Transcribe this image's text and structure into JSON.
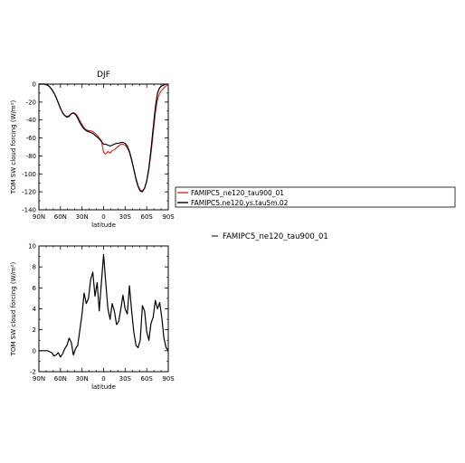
{
  "figure_title": "DJF",
  "chart_data": [
    {
      "type": "line",
      "title": "DJF",
      "xlabel": "latitude",
      "ylabel": "TOM SW cloud forcing (W/m²)",
      "xlim": [
        90,
        -90
      ],
      "ylim": [
        -140,
        0
      ],
      "xticklabels": [
        "90N",
        "60N",
        "30N",
        "0",
        "30S",
        "60S",
        "90S"
      ],
      "xticks": [
        90,
        60,
        30,
        0,
        -30,
        -60,
        -90
      ],
      "yticks": [
        0,
        -20,
        -40,
        -60,
        -80,
        -100,
        -120,
        -140
      ],
      "grid": false,
      "legend_position": "right",
      "series": [
        {
          "name": "FAMIPC5_ne120_tau900_01",
          "color": "#e8262a",
          "x": [
            90,
            87,
            84,
            81,
            78,
            75,
            72,
            69,
            66,
            63,
            60,
            57,
            54,
            51,
            48,
            45,
            42,
            39,
            36,
            33,
            30,
            27,
            24,
            21,
            18,
            15,
            12,
            9,
            6,
            3,
            0,
            -3,
            -6,
            -9,
            -12,
            -15,
            -18,
            -21,
            -24,
            -27,
            -30,
            -33,
            -36,
            -39,
            -42,
            -45,
            -48,
            -51,
            -54,
            -57,
            -60,
            -63,
            -66,
            -69,
            -72,
            -75,
            -78,
            -81,
            -84,
            -87,
            -90
          ],
          "y": [
            0,
            0,
            0,
            0,
            -1,
            -3,
            -6,
            -10,
            -15,
            -21,
            -27,
            -32,
            -35,
            -36,
            -35,
            -33,
            -32,
            -33,
            -36,
            -41,
            -45,
            -49,
            -51,
            -52,
            -52,
            -53,
            -55,
            -57,
            -60,
            -63,
            -76,
            -78,
            -75,
            -77,
            -74,
            -73,
            -71,
            -69,
            -67,
            -67,
            -68,
            -71,
            -76,
            -85,
            -95,
            -105,
            -113,
            -118,
            -119,
            -116,
            -108,
            -95,
            -77,
            -55,
            -32,
            -17,
            -10,
            -7,
            -4,
            -2,
            -1
          ]
        },
        {
          "name": "FAMIPC5.ne120.ys.tau5m.02",
          "color": "#000000",
          "x": [
            90,
            87,
            84,
            81,
            78,
            75,
            72,
            69,
            66,
            63,
            60,
            57,
            54,
            51,
            48,
            45,
            42,
            39,
            36,
            33,
            30,
            27,
            24,
            21,
            18,
            15,
            12,
            9,
            6,
            3,
            0,
            -3,
            -6,
            -9,
            -12,
            -15,
            -18,
            -21,
            -24,
            -27,
            -30,
            -33,
            -36,
            -39,
            -42,
            -45,
            -48,
            -51,
            -54,
            -57,
            -60,
            -63,
            -66,
            -69,
            -72,
            -75,
            -78,
            -81,
            -84,
            -87,
            -90
          ],
          "y": [
            0,
            0,
            0,
            0,
            -1,
            -3,
            -6,
            -10,
            -15,
            -21,
            -27,
            -32,
            -35,
            -37,
            -36,
            -33,
            -32,
            -34,
            -38,
            -43,
            -47,
            -50,
            -52,
            -53,
            -54,
            -55,
            -57,
            -59,
            -61,
            -64,
            -67,
            -67,
            -68,
            -69,
            -68,
            -67,
            -66,
            -66,
            -65,
            -65,
            -66,
            -69,
            -75,
            -84,
            -95,
            -106,
            -114,
            -119,
            -120,
            -116,
            -108,
            -93,
            -73,
            -49,
            -26,
            -10,
            -4,
            -2,
            -1,
            0,
            0
          ]
        }
      ]
    },
    {
      "type": "line",
      "title": "",
      "xlabel": "latitude",
      "ylabel": "TOM SW cloud forcing (W/m²)",
      "xlim": [
        90,
        -90
      ],
      "ylim": [
        -2,
        10
      ],
      "xticklabels": [
        "90N",
        "60N",
        "30N",
        "0",
        "30S",
        "60S",
        "90S"
      ],
      "xticks": [
        90,
        60,
        30,
        0,
        -30,
        -60,
        -90
      ],
      "yticks": [
        -2,
        0,
        2,
        4,
        6,
        8,
        10
      ],
      "grid": false,
      "legend_position": "right",
      "series": [
        {
          "name": "FAMIPC5_ne120_tau900_01",
          "color": "#000000",
          "x": [
            90,
            87,
            84,
            81,
            78,
            75,
            72,
            69,
            66,
            63,
            60,
            57,
            54,
            51,
            48,
            45,
            42,
            39,
            36,
            33,
            30,
            27,
            24,
            21,
            18,
            15,
            12,
            9,
            6,
            3,
            0,
            -3,
            -6,
            -9,
            -12,
            -15,
            -18,
            -21,
            -24,
            -27,
            -30,
            -33,
            -36,
            -39,
            -42,
            -45,
            -48,
            -51,
            -54,
            -57,
            -60,
            -63,
            -66,
            -69,
            -72,
            -75,
            -78,
            -81,
            -84,
            -87,
            -90
          ],
          "y": [
            0,
            0,
            0,
            0,
            0,
            -0.1,
            -0.2,
            -0.5,
            -0.4,
            -0.2,
            -0.6,
            -0.3,
            0.2,
            0.5,
            1.2,
            0.8,
            -0.4,
            0.2,
            0.5,
            2,
            3.5,
            5.5,
            4.5,
            5,
            6.8,
            7.5,
            5.2,
            6.5,
            3.8,
            6.5,
            9.2,
            6.5,
            4,
            3,
            4.5,
            3.8,
            2.5,
            2.8,
            4,
            5.3,
            4,
            3.5,
            6.2,
            3.8,
            1.8,
            0.5,
            0.3,
            1,
            4.3,
            3.8,
            1.8,
            1,
            2.6,
            3.2,
            4.8,
            4,
            4.6,
            3.2,
            1.2,
            0.3,
            0
          ]
        }
      ]
    }
  ],
  "legend_box": {
    "entries": [
      "FAMIPC5_ne120_tau900_01",
      "FAMIPC5.ne120.ys.tau5m.02"
    ]
  },
  "legend2": {
    "entries": [
      "FAMIPC5_ne120_tau900_01"
    ]
  }
}
